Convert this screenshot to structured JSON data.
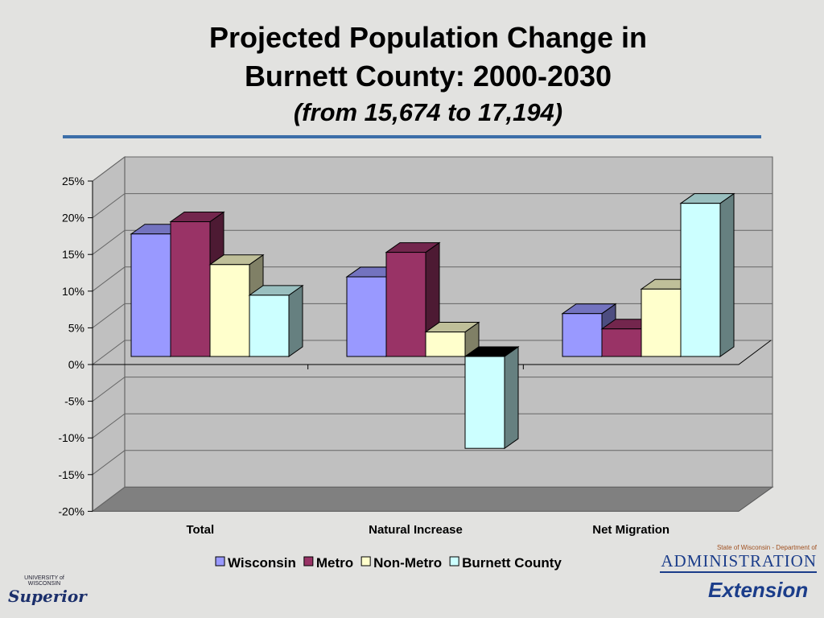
{
  "chart_data": {
    "type": "bar",
    "title": "Projected Population Change in",
    "title_line2": "Burnett County: 2000-2030",
    "subtitle": "(from 15,674 to 17,194)",
    "categories": [
      "Total",
      "Natural Increase",
      "Net Migration"
    ],
    "series": [
      {
        "name": "Wisconsin",
        "values": [
          20,
          13,
          7
        ],
        "color": "#9999ff"
      },
      {
        "name": "Metro",
        "values": [
          22,
          17,
          4.5
        ],
        "color": "#993366"
      },
      {
        "name": "Non-Metro",
        "values": [
          15,
          4,
          11
        ],
        "color": "#ffffcc"
      },
      {
        "name": "Burnett County",
        "values": [
          10,
          -15,
          25
        ],
        "color": "#ccffff"
      }
    ],
    "yticks": [
      "25%",
      "20%",
      "15%",
      "10%",
      "5%",
      "0%",
      "-5%",
      "-10%",
      "-15%",
      "-20%"
    ],
    "ylim": [
      -20,
      25
    ],
    "grid": true,
    "legend": "bottom"
  },
  "logos": {
    "uw_superior_top": "UNIVERSITY of WISCONSIN",
    "uw_superior": "Superior",
    "doa_small": "State of Wisconsin - Department of",
    "doa": "ADMINISTRATION",
    "extension": "Extension"
  }
}
